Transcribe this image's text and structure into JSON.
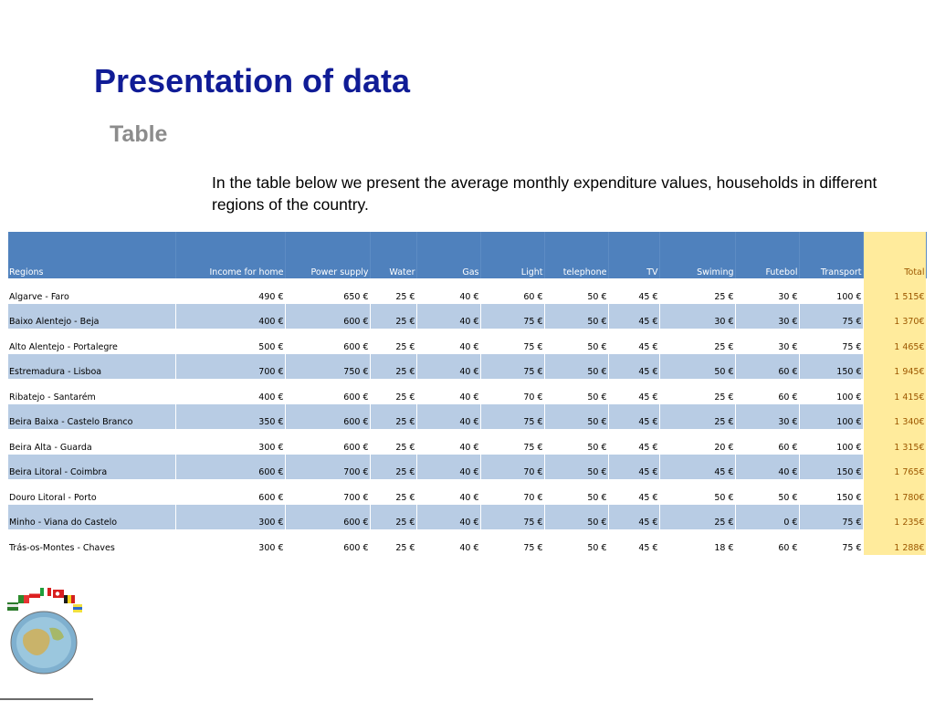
{
  "slide": {
    "title": "Presentation of data",
    "subtitle": "Table",
    "intro": "In the table below we present the average monthly expenditure values, households in different regions of the country."
  },
  "table": {
    "headers": [
      "Regions",
      "Income for home",
      "Power supply",
      "Water",
      "Gas",
      "Light",
      "telephone",
      "TV",
      "Swiming",
      "Futebol",
      "Transport",
      "Total"
    ],
    "rows": [
      [
        "Algarve - Faro",
        "490 €",
        "650 €",
        "25 €",
        "40 €",
        "60 €",
        "50 €",
        "45 €",
        "25 €",
        "30 €",
        "100 €",
        "1 515€"
      ],
      [
        "Baixo Alentejo - Beja",
        "400 €",
        "600 €",
        "25 €",
        "40 €",
        "75 €",
        "50 €",
        "45 €",
        "30 €",
        "30 €",
        "75 €",
        "1 370€"
      ],
      [
        "Alto Alentejo - Portalegre",
        "500 €",
        "600 €",
        "25 €",
        "40 €",
        "75 €",
        "50 €",
        "45 €",
        "25 €",
        "30 €",
        "75 €",
        "1 465€"
      ],
      [
        "Estremadura - Lisboa",
        "700 €",
        "750 €",
        "25 €",
        "40 €",
        "75 €",
        "50 €",
        "45 €",
        "50 €",
        "60 €",
        "150 €",
        "1 945€"
      ],
      [
        "Ribatejo - Santarém",
        "400 €",
        "600 €",
        "25 €",
        "40 €",
        "70 €",
        "50 €",
        "45 €",
        "25 €",
        "60 €",
        "100 €",
        "1 415€"
      ],
      [
        "Beira Baixa - Castelo Branco",
        "350 €",
        "600 €",
        "25 €",
        "40 €",
        "75 €",
        "50 €",
        "45 €",
        "25 €",
        "30 €",
        "100 €",
        "1 340€"
      ],
      [
        "Beira Alta - Guarda",
        "300 €",
        "600 €",
        "25 €",
        "40 €",
        "75 €",
        "50 €",
        "45 €",
        "20 €",
        "60 €",
        "100 €",
        "1 315€"
      ],
      [
        "Beira Litoral - Coimbra",
        "600 €",
        "700 €",
        "25 €",
        "40 €",
        "70 €",
        "50 €",
        "45 €",
        "45 €",
        "40 €",
        "150 €",
        "1 765€"
      ],
      [
        "Douro Litoral - Porto",
        "600 €",
        "700 €",
        "25 €",
        "40 €",
        "70 €",
        "50 €",
        "45 €",
        "50 €",
        "50 €",
        "150 €",
        "1 780€"
      ],
      [
        "Minho - Viana do Castelo",
        "300 €",
        "600 €",
        "25 €",
        "40 €",
        "75 €",
        "50 €",
        "45 €",
        "25 €",
        "0 €",
        "75 €",
        "1 235€"
      ],
      [
        "Trás-os-Montes - Chaves",
        "300 €",
        "600 €",
        "25 €",
        "40 €",
        "75 €",
        "50 €",
        "45 €",
        "18 €",
        "60 €",
        "75 €",
        "1 288€"
      ]
    ]
  },
  "colors": {
    "title": "#101c96",
    "subtitle": "#8c8c8c",
    "header_bg": "#4f81bd",
    "band_bg": "#b8cce4",
    "total_bg": "#ffeb9c",
    "total_text": "#9c5700"
  },
  "icons": {
    "logo": "flags-globe-logo"
  }
}
